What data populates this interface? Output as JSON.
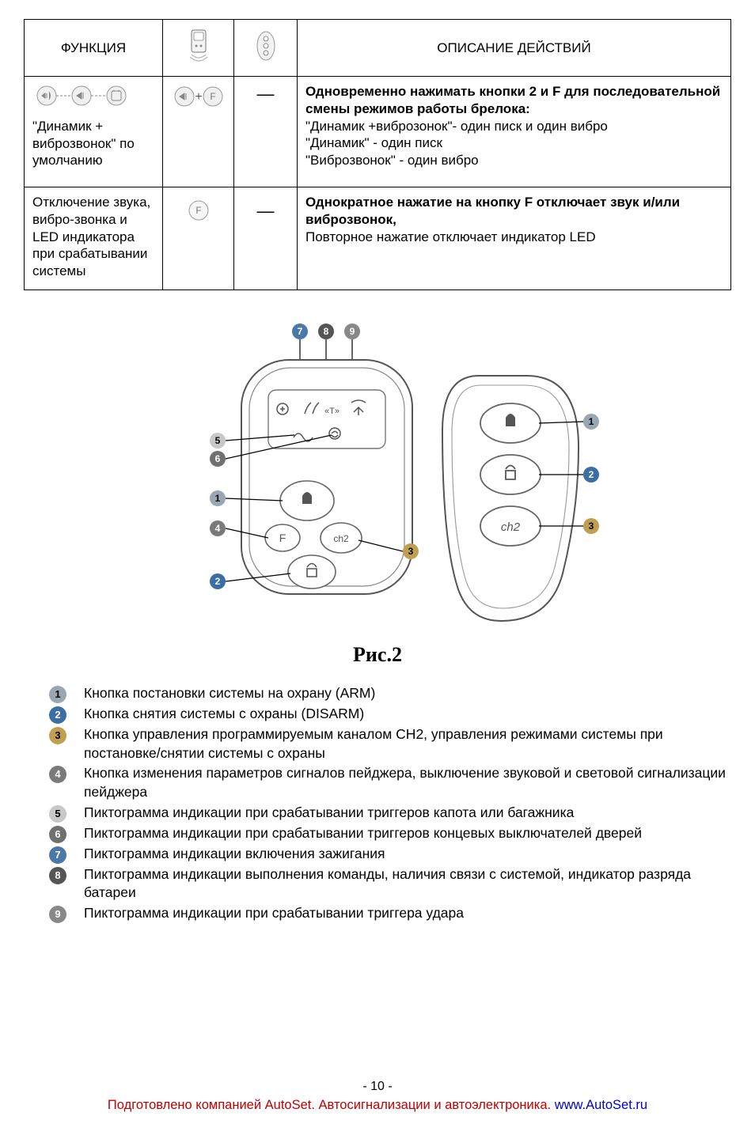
{
  "table": {
    "headers": {
      "func": "ФУНКЦИЯ",
      "desc": "ОПИСАНИЕ ДЕЙСТВИЙ"
    },
    "row1": {
      "func_label": "\"Динамик + виброзвонок\" по умолчанию",
      "desc_b1": "Одновременно нажимать кнопки 2 и F для последовательной смены режимов работы брелока:",
      "desc_l2": "\"Динамик +виброзонок\"- один писк и один вибро",
      "desc_l3": "\"Динамик\" - один писк",
      "desc_l4": "\"Виброзвонок\" - один вибро"
    },
    "row2": {
      "func_label": "Отключение звука, вибро-звонка и LED индикатора при срабатывании системы",
      "desc_b1": "Однократное нажатие на кнопку F отключает звук и/или виброзвонок,",
      "desc_l2": "Повторное нажатие отключает индикатор LED"
    }
  },
  "figure_caption": "Рис.2",
  "legend": [
    {
      "n": "1",
      "text": "Кнопка постановки системы на охрану (ARM)"
    },
    {
      "n": "2",
      "text": "Кнопка снятия системы с охраны (DISARM)"
    },
    {
      "n": "3",
      "text": "Кнопка управления программируемым каналом CH2, управления режимами системы при постановке/снятии системы с охраны"
    },
    {
      "n": "4",
      "text": "Кнопка изменения параметров сигналов пейджера, выключение звуковой и световой сигнализации пейджера"
    },
    {
      "n": "5",
      "text": "Пиктограмма индикации при срабатывании триггеров капота или багажника"
    },
    {
      "n": "6",
      "text": "Пиктограмма индикации при срабатывании триггеров концевых выключателей дверей"
    },
    {
      "n": "7",
      "text": "Пиктограмма индикации включения зажигания"
    },
    {
      "n": "8",
      "text": "Пиктограмма индикации выполнения команды, наличия связи с системой, индикатор разряда батареи"
    },
    {
      "n": "9",
      "text": "Пиктограмма индикации при срабатывании триггера удара"
    }
  ],
  "legend_colors": {
    "1": {
      "fill": "#9aa6b2",
      "text": "#000"
    },
    "2": {
      "fill": "#3a6ea5",
      "text": "#fff"
    },
    "3": {
      "fill": "#c0a050",
      "text": "#000"
    },
    "4": {
      "fill": "#7a7a7a",
      "text": "#fff"
    },
    "5": {
      "fill": "#c8c8c8",
      "text": "#000"
    },
    "6": {
      "fill": "#707070",
      "text": "#fff"
    },
    "7": {
      "fill": "#4a78a8",
      "text": "#fff"
    },
    "8": {
      "fill": "#555555",
      "text": "#fff"
    },
    "9": {
      "fill": "#888888",
      "text": "#fff"
    }
  },
  "page_number": "- 10 -",
  "footer": {
    "text1": "Подготовлено компанией AutoSet. ",
    "text2": "Автосигнализации и автоэлектроника. ",
    "link": "www.AutoSet.ru"
  }
}
